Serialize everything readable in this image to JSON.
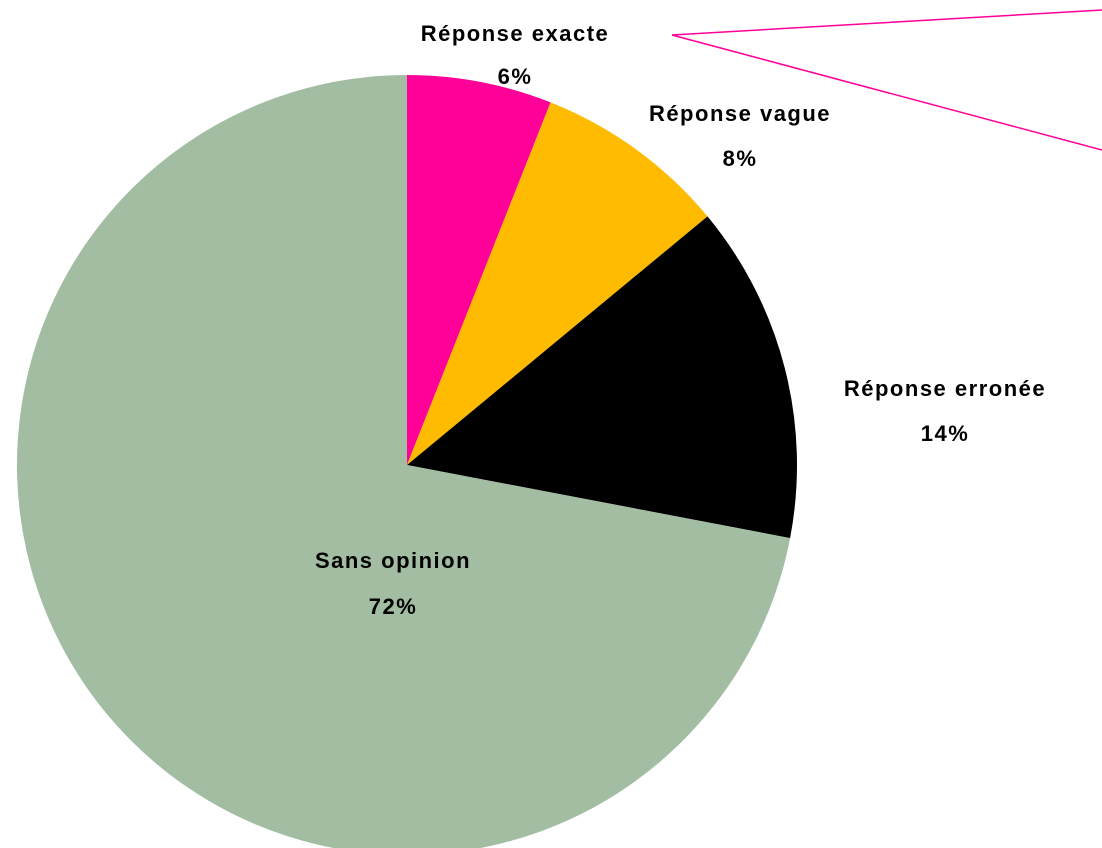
{
  "chart_data": {
    "type": "pie",
    "categories": [
      "Réponse exacte",
      "Réponse vague",
      "Réponse erronée",
      "Sans opinion"
    ],
    "values": [
      6,
      8,
      14,
      72
    ],
    "value_labels": [
      "6%",
      "8%",
      "14%",
      "72%"
    ],
    "colors": [
      "#ff0099",
      "#ffbb00",
      "#000000",
      "#a2bda2"
    ]
  }
}
